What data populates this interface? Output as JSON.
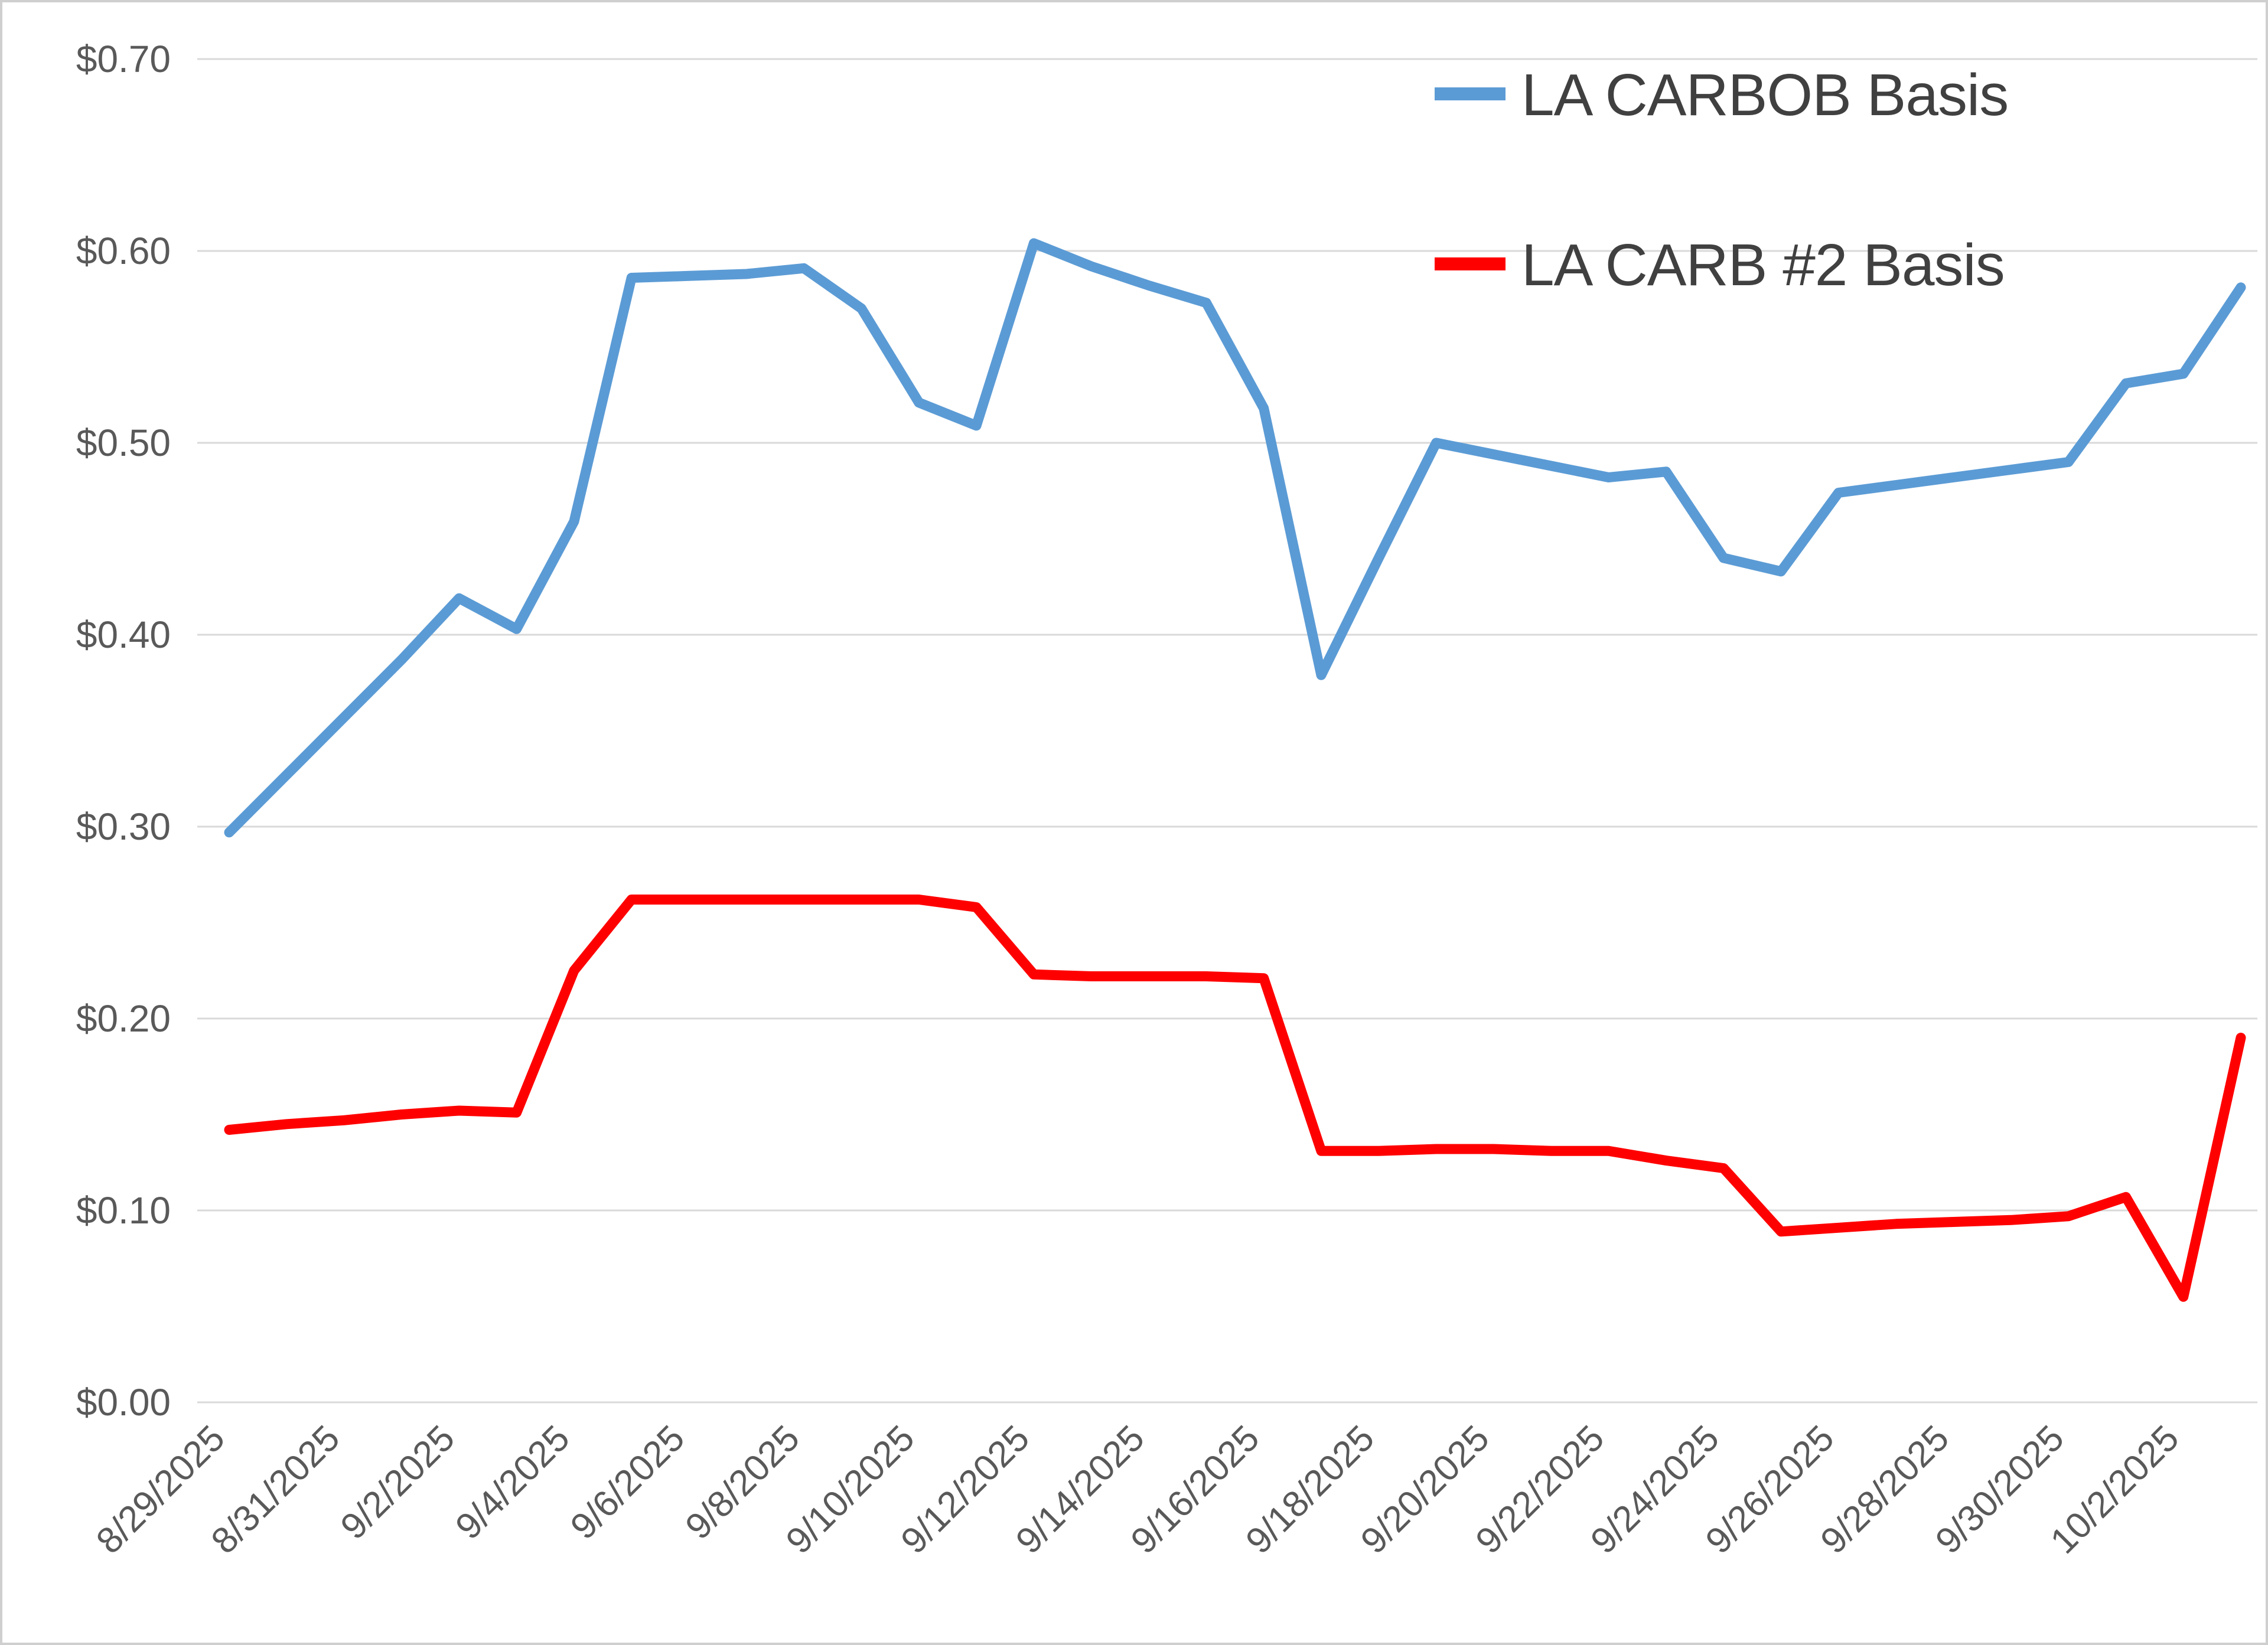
{
  "chart_data": {
    "type": "line",
    "title": "",
    "xlabel": "",
    "ylabel": "",
    "ylim": [
      0.0,
      0.7
    ],
    "ytick_step": 0.1,
    "ytick_labels": [
      "$0.00",
      "$0.10",
      "$0.20",
      "$0.30",
      "$0.40",
      "$0.50",
      "$0.60",
      "$0.70"
    ],
    "grid": "horizontal",
    "legend_position": "top-right",
    "x": [
      "8/29/2025",
      "8/30/2025",
      "8/31/2025",
      "9/1/2025",
      "9/2/2025",
      "9/3/2025",
      "9/4/2025",
      "9/5/2025",
      "9/6/2025",
      "9/7/2025",
      "9/8/2025",
      "9/9/2025",
      "9/10/2025",
      "9/11/2025",
      "9/12/2025",
      "9/13/2025",
      "9/14/2025",
      "9/15/2025",
      "9/16/2025",
      "9/17/2025",
      "9/18/2025",
      "9/19/2025",
      "9/20/2025",
      "9/21/2025",
      "9/22/2025",
      "9/23/2025",
      "9/24/2025",
      "9/25/2025",
      "9/26/2025",
      "9/27/2025",
      "9/28/2025",
      "9/29/2025",
      "9/30/2025",
      "10/1/2025",
      "10/2/2025",
      "10/3/2025"
    ],
    "xtick_every": 2,
    "xtick_labels": [
      "8/29/2025",
      "8/31/2025",
      "9/2/2025",
      "9/4/2025",
      "9/6/2025",
      "9/8/2025",
      "9/10/2025",
      "9/12/2025",
      "9/14/2025",
      "9/16/2025",
      "9/18/2025",
      "9/20/2025",
      "9/22/2025",
      "9/24/2025",
      "9/26/2025",
      "9/28/2025",
      "9/30/2025",
      "10/2/2025"
    ],
    "series": [
      {
        "name": "LA CARBOB Basis",
        "color": "#5B9BD5",
        "values": [
          0.297,
          0.327,
          0.357,
          0.387,
          0.419,
          0.403,
          0.459,
          0.586,
          0.587,
          0.588,
          0.591,
          0.57,
          0.521,
          0.509,
          0.604,
          0.592,
          0.582,
          0.573,
          0.518,
          0.379,
          0.44,
          0.5,
          0.494,
          0.488,
          0.482,
          0.485,
          0.44,
          0.433,
          0.474,
          0.478,
          0.482,
          0.486,
          0.49,
          0.531,
          0.536,
          0.581
        ]
      },
      {
        "name": "LA CARB #2 Basis",
        "color": "#FF0000",
        "values": [
          0.142,
          0.145,
          0.147,
          0.15,
          0.152,
          0.151,
          0.225,
          0.262,
          0.262,
          0.262,
          0.262,
          0.262,
          0.262,
          0.258,
          0.223,
          0.222,
          0.222,
          0.222,
          0.221,
          0.131,
          0.131,
          0.132,
          0.132,
          0.131,
          0.131,
          0.126,
          0.122,
          0.089,
          0.091,
          0.093,
          0.094,
          0.095,
          0.097,
          0.107,
          0.055,
          0.19
        ]
      }
    ],
    "colors": {
      "gridline": "#D9D9D9",
      "axis_text": "#595959",
      "legend_text": "#404040",
      "background": "#FFFFFF"
    }
  }
}
